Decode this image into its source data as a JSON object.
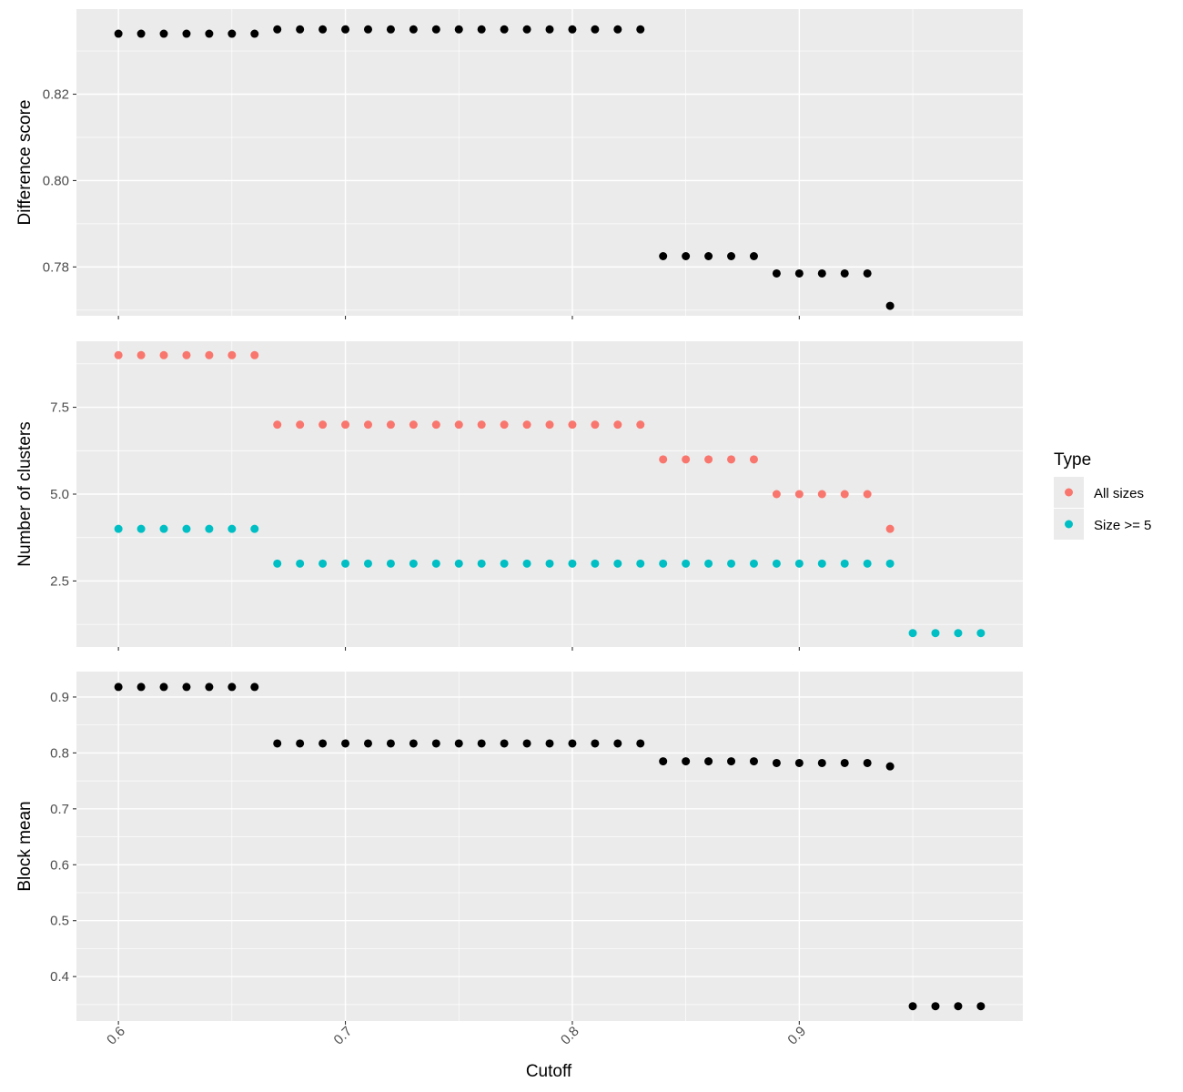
{
  "chart_data": {
    "type": "scatter",
    "x_label": "Cutoff",
    "x_ticks": [
      0.6,
      0.7,
      0.8,
      0.9
    ],
    "x_range": [
      0.5815,
      0.9985
    ],
    "legend": {
      "title": "Type",
      "position": "right",
      "entries": [
        {
          "label": "All sizes",
          "color": "#F8766D"
        },
        {
          "label": "Size >= 5",
          "color": "#00BFC4"
        }
      ]
    },
    "panels": [
      {
        "id": "difference",
        "ylabel": "Difference score",
        "y_range": [
          0.7687,
          0.8397
        ],
        "y_ticks": [
          0.78,
          0.8,
          0.82
        ],
        "y_tick_labels": [
          "0.78",
          "0.80",
          "0.82"
        ],
        "minor_gridlines": true,
        "series": [
          {
            "name": "",
            "color": "#000000",
            "x": [
              0.6,
              0.61,
              0.62,
              0.63,
              0.64,
              0.65,
              0.66,
              0.67,
              0.68,
              0.69,
              0.7,
              0.71,
              0.72,
              0.73,
              0.74,
              0.75,
              0.76,
              0.77,
              0.78,
              0.79,
              0.8,
              0.81,
              0.82,
              0.83,
              0.84,
              0.85,
              0.86,
              0.87,
              0.88,
              0.89,
              0.9,
              0.91,
              0.92,
              0.93,
              0.94
            ],
            "y": [
              0.834,
              0.834,
              0.834,
              0.834,
              0.834,
              0.834,
              0.834,
              0.835,
              0.835,
              0.835,
              0.835,
              0.835,
              0.835,
              0.835,
              0.835,
              0.835,
              0.835,
              0.835,
              0.835,
              0.835,
              0.835,
              0.835,
              0.835,
              0.835,
              0.7825,
              0.7825,
              0.7825,
              0.7825,
              0.7825,
              0.7785,
              0.7785,
              0.7785,
              0.7785,
              0.7785,
              0.771
            ]
          }
        ]
      },
      {
        "id": "clusters",
        "ylabel": "Number of clusters",
        "y_range": [
          0.6,
          9.4
        ],
        "y_ticks": [
          2.5,
          5.0,
          7.5
        ],
        "y_tick_labels": [
          "2.5",
          "5.0",
          "7.5"
        ],
        "minor_gridlines": true,
        "series": [
          {
            "name": "All sizes",
            "color": "#F8766D",
            "x": [
              0.6,
              0.61,
              0.62,
              0.63,
              0.64,
              0.65,
              0.66,
              0.67,
              0.68,
              0.69,
              0.7,
              0.71,
              0.72,
              0.73,
              0.74,
              0.75,
              0.76,
              0.77,
              0.78,
              0.79,
              0.8,
              0.81,
              0.82,
              0.83,
              0.84,
              0.85,
              0.86,
              0.87,
              0.88,
              0.89,
              0.9,
              0.91,
              0.92,
              0.93,
              0.94
            ],
            "y": [
              9,
              9,
              9,
              9,
              9,
              9,
              9,
              7,
              7,
              7,
              7,
              7,
              7,
              7,
              7,
              7,
              7,
              7,
              7,
              7,
              7,
              7,
              7,
              7,
              6,
              6,
              6,
              6,
              6,
              5,
              5,
              5,
              5,
              5,
              4
            ]
          },
          {
            "name": "Size >= 5",
            "color": "#00BFC4",
            "x": [
              0.6,
              0.61,
              0.62,
              0.63,
              0.64,
              0.65,
              0.66,
              0.67,
              0.68,
              0.69,
              0.7,
              0.71,
              0.72,
              0.73,
              0.74,
              0.75,
              0.76,
              0.77,
              0.78,
              0.79,
              0.8,
              0.81,
              0.82,
              0.83,
              0.84,
              0.85,
              0.86,
              0.87,
              0.88,
              0.89,
              0.9,
              0.91,
              0.92,
              0.93,
              0.94,
              0.95,
              0.96,
              0.97,
              0.98
            ],
            "y": [
              4,
              4,
              4,
              4,
              4,
              4,
              4,
              3,
              3,
              3,
              3,
              3,
              3,
              3,
              3,
              3,
              3,
              3,
              3,
              3,
              3,
              3,
              3,
              3,
              3,
              3,
              3,
              3,
              3,
              3,
              3,
              3,
              3,
              3,
              3,
              1,
              1,
              1,
              1
            ]
          }
        ]
      },
      {
        "id": "block",
        "ylabel": "Block mean",
        "y_range": [
          0.3205,
          0.9455
        ],
        "y_ticks": [
          0.4,
          0.5,
          0.6,
          0.7,
          0.8,
          0.9
        ],
        "y_tick_labels": [
          "0.4",
          "0.5",
          "0.6",
          "0.7",
          "0.8",
          "0.9"
        ],
        "minor_gridlines": true,
        "series": [
          {
            "name": "",
            "color": "#000000",
            "x": [
              0.6,
              0.61,
              0.62,
              0.63,
              0.64,
              0.65,
              0.66,
              0.67,
              0.68,
              0.69,
              0.7,
              0.71,
              0.72,
              0.73,
              0.74,
              0.75,
              0.76,
              0.77,
              0.78,
              0.79,
              0.8,
              0.81,
              0.82,
              0.83,
              0.84,
              0.85,
              0.86,
              0.87,
              0.88,
              0.89,
              0.9,
              0.91,
              0.92,
              0.93,
              0.94,
              0.95,
              0.96,
              0.97,
              0.98
            ],
            "y": [
              0.918,
              0.918,
              0.918,
              0.918,
              0.918,
              0.918,
              0.918,
              0.817,
              0.817,
              0.817,
              0.817,
              0.817,
              0.817,
              0.817,
              0.817,
              0.817,
              0.817,
              0.817,
              0.817,
              0.817,
              0.817,
              0.817,
              0.817,
              0.817,
              0.785,
              0.785,
              0.785,
              0.785,
              0.785,
              0.782,
              0.782,
              0.782,
              0.782,
              0.782,
              0.776,
              0.347,
              0.347,
              0.347,
              0.347
            ]
          }
        ]
      }
    ]
  }
}
